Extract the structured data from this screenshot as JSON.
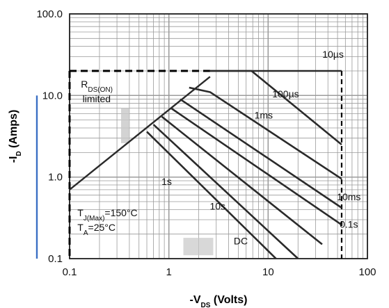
{
  "chart_data": {
    "type": "line",
    "xscale": "log",
    "yscale": "log",
    "xlim": [
      0.1,
      100
    ],
    "ylim": [
      0.1,
      100
    ],
    "grid": true,
    "x_ticks": [
      {
        "value": 0.1,
        "label": "0.1"
      },
      {
        "value": 1,
        "label": "1"
      },
      {
        "value": 10,
        "label": "10"
      },
      {
        "value": 100,
        "label": "100"
      }
    ],
    "y_ticks": [
      {
        "value": 100,
        "label": "100.0"
      },
      {
        "value": 10,
        "label": "10.0"
      },
      {
        "value": 1,
        "label": "1.0"
      },
      {
        "value": 0.1,
        "label": "0.1"
      }
    ],
    "xlabel": {
      "prefix": "-V",
      "sub": "DS",
      "suffix": " (Volts)"
    },
    "ylabel": {
      "prefix": "-I",
      "sub": "D",
      "suffix": " (Amps)"
    },
    "limits": {
      "current_limit_A": 20,
      "breakdown_V": 55,
      "rds_on_line": {
        "x": [
          0.1,
          2.6
        ],
        "y": [
          0.7,
          17
        ]
      }
    },
    "series": [
      {
        "name": "10µs",
        "x": [
          2.6,
          55
        ],
        "y": [
          20,
          20
        ]
      },
      {
        "name": "100µs",
        "x": [
          2.6,
          6.8,
          55
        ],
        "y": [
          20,
          20,
          2.5
        ]
      },
      {
        "name": "1ms",
        "x": [
          1.6,
          2.6,
          55
        ],
        "y": [
          12.5,
          11,
          0.95
        ]
      },
      {
        "name": "10ms",
        "x": [
          1.3,
          55
        ],
        "y": [
          9,
          0.42
        ]
      },
      {
        "name": "0.1s",
        "x": [
          1.05,
          55
        ],
        "y": [
          7,
          0.26
        ]
      },
      {
        "name": "1s",
        "x": [
          0.85,
          35
        ],
        "y": [
          5.5,
          0.15
        ]
      },
      {
        "name": "10s",
        "x": [
          0.7,
          20
        ],
        "y": [
          4.4,
          0.1
        ]
      },
      {
        "name": "DC",
        "x": [
          0.6,
          12
        ],
        "y": [
          3.6,
          0.1
        ]
      }
    ],
    "annotations": [
      {
        "text": "10µs",
        "x": 45,
        "y": 29
      },
      {
        "text": "100µs",
        "x": 15,
        "y": 9.5
      },
      {
        "text": "1ms",
        "x": 9,
        "y": 5.2
      },
      {
        "text": "10ms",
        "x": 65,
        "y": 0.52
      },
      {
        "text": "0.1s",
        "x": 65,
        "y": 0.24
      },
      {
        "text": "1s",
        "x": 0.95,
        "y": 0.8
      },
      {
        "text": "10s",
        "x": 3.1,
        "y": 0.4
      },
      {
        "text": "DC",
        "x": 5.3,
        "y": 0.15
      }
    ],
    "notes": {
      "rds": {
        "main": "R",
        "sub": "DS(ON)",
        "line2": "limited"
      },
      "tj": {
        "main": "T",
        "sub": "J(Max)",
        "value": "=150°C"
      },
      "ta": {
        "main": "T",
        "sub": "A",
        "value": "=25°C"
      }
    },
    "colors": {
      "curve": "#2a2a2a",
      "grid": "#9a9a9a",
      "blue_axis": "#3b6fc4",
      "highlight": "#c8c8c8"
    }
  }
}
